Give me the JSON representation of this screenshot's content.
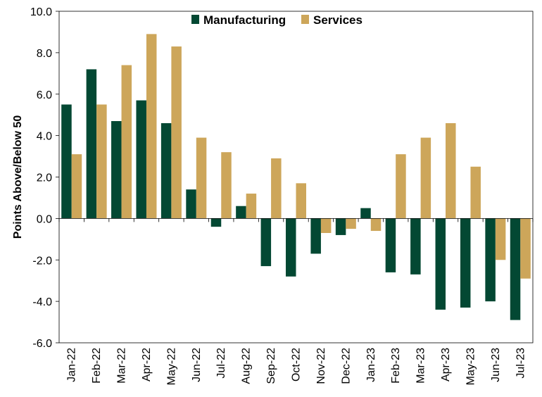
{
  "chart_data": {
    "type": "bar",
    "categories": [
      "Jan-22",
      "Feb-22",
      "Mar-22",
      "Apr-22",
      "May-22",
      "Jun-22",
      "Jul-22",
      "Aug-22",
      "Sep-22",
      "Oct-22",
      "Nov-22",
      "Dec-22",
      "Jan-23",
      "Feb-23",
      "Mar-23",
      "Apr-23",
      "May-23",
      "Jun-23",
      "Jul-23"
    ],
    "series": [
      {
        "name": "Manufacturing",
        "color": "#034833",
        "values": [
          5.5,
          7.2,
          4.7,
          5.7,
          4.6,
          1.4,
          -0.4,
          0.6,
          -2.3,
          -2.8,
          -1.7,
          -0.8,
          0.5,
          -2.6,
          -2.7,
          -4.4,
          -4.3,
          -4.0,
          -4.9
        ]
      },
      {
        "name": "Services",
        "color": "#CDA65A",
        "values": [
          3.1,
          5.5,
          7.4,
          8.9,
          8.3,
          3.9,
          3.2,
          1.2,
          2.9,
          1.7,
          -0.7,
          -0.5,
          -0.6,
          3.1,
          3.9,
          4.6,
          2.5,
          -2.0,
          -2.9
        ]
      }
    ],
    "title": "",
    "xlabel": "",
    "ylabel": "Points Above/Below 50",
    "ylim": [
      -6,
      10
    ],
    "yticks": [
      -6,
      -4,
      -2,
      0,
      2,
      4,
      6,
      8,
      10
    ],
    "ytick_labels": [
      "-6.0",
      "-4.0",
      "-2.0",
      "0.0",
      "2.0",
      "4.0",
      "6.0",
      "8.0",
      "10.0"
    ],
    "legend_position": "top-center",
    "grid": false
  }
}
